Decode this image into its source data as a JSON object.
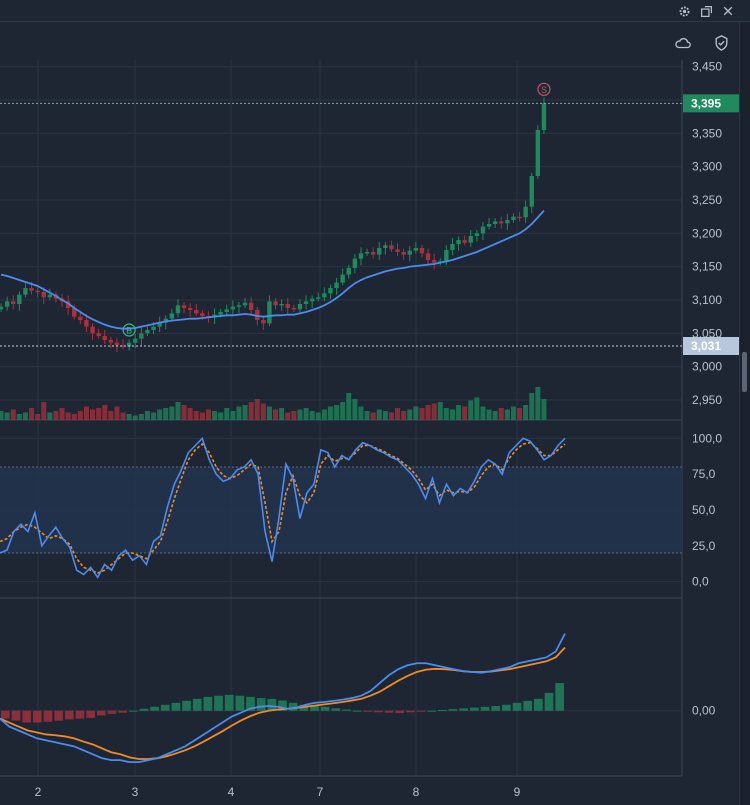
{
  "colors": {
    "background": "#1e2633",
    "grid": "#2a3442",
    "up": "#1e8a5e",
    "down": "#a8323e",
    "ma": "#4a8cf0",
    "signal": "#f08c28",
    "price_tag": "#1e8a5e",
    "last_tag": "#b8c8dc",
    "band_fill": "#23344f"
  },
  "icons": {
    "settings": "gear-icon",
    "popout": "popout-icon",
    "close": "close-icon",
    "cloud": "cloud-icon",
    "shield": "shield-check-icon"
  },
  "chart_data": [
    {
      "type": "candlestick",
      "panel": "price",
      "x_labels": [
        "2",
        "3",
        "4",
        "7",
        "8",
        "9"
      ],
      "y_ticks": [
        "2,950",
        "3,000",
        "3,050",
        "3,100",
        "3,150",
        "3,200",
        "3,250",
        "3,300",
        "3,350",
        "3,400",
        "3,450"
      ],
      "ylim": [
        2920,
        3460
      ],
      "current_price": "3,395",
      "current_price_value": 3395,
      "marker_price": "3,031",
      "marker_price_value": 3031,
      "markers": [
        {
          "label": "B",
          "bar": 21,
          "price": 3055
        },
        {
          "label": "S",
          "bar": 89,
          "price": 3416
        }
      ],
      "close": [
        3090,
        3098,
        3094,
        3108,
        3118,
        3114,
        3112,
        3104,
        3108,
        3102,
        3098,
        3088,
        3075,
        3070,
        3060,
        3050,
        3046,
        3040,
        3036,
        3032,
        3030,
        3036,
        3042,
        3050,
        3055,
        3060,
        3066,
        3072,
        3080,
        3092,
        3088,
        3085,
        3080,
        3076,
        3074,
        3078,
        3082,
        3086,
        3090,
        3092,
        3096,
        3085,
        3070,
        3065,
        3098,
        3092,
        3094,
        3088,
        3086,
        3094,
        3098,
        3102,
        3104,
        3110,
        3118,
        3126,
        3138,
        3148,
        3162,
        3170,
        3172,
        3168,
        3178,
        3182,
        3176,
        3172,
        3168,
        3174,
        3178,
        3170,
        3160,
        3156,
        3158,
        3175,
        3184,
        3190,
        3186,
        3196,
        3200,
        3210,
        3214,
        3218,
        3215,
        3220,
        3225,
        3224,
        3240,
        3286,
        3355,
        3395
      ],
      "ma": [
        3138,
        3136,
        3133,
        3130,
        3127,
        3124,
        3121,
        3116,
        3111,
        3106,
        3100,
        3095,
        3088,
        3082,
        3076,
        3071,
        3067,
        3063,
        3060,
        3058,
        3057,
        3057,
        3058,
        3060,
        3062,
        3064,
        3066,
        3068,
        3069,
        3070,
        3071,
        3072,
        3072,
        3073,
        3074,
        3075,
        3076,
        3077,
        3077,
        3078,
        3079,
        3078,
        3076,
        3075,
        3076,
        3077,
        3077,
        3078,
        3078,
        3080,
        3082,
        3085,
        3088,
        3092,
        3097,
        3103,
        3110,
        3118,
        3125,
        3130,
        3134,
        3137,
        3140,
        3143,
        3145,
        3147,
        3148,
        3150,
        3151,
        3152,
        3153,
        3154,
        3156,
        3158,
        3160,
        3163,
        3166,
        3169,
        3172,
        3176,
        3180,
        3184,
        3188,
        3192,
        3196,
        3200,
        3206,
        3214,
        3224,
        3234
      ],
      "volume": [
        6,
        5,
        7,
        4,
        5,
        8,
        4,
        12,
        5,
        6,
        8,
        5,
        4,
        6,
        9,
        7,
        8,
        10,
        6,
        9,
        5,
        4,
        3,
        4,
        6,
        5,
        7,
        8,
        9,
        12,
        10,
        8,
        6,
        5,
        7,
        6,
        5,
        8,
        6,
        9,
        10,
        12,
        14,
        11,
        9,
        7,
        8,
        5,
        6,
        7,
        8,
        6,
        5,
        7,
        9,
        10,
        12,
        18,
        14,
        9,
        6,
        5,
        7,
        6,
        5,
        8,
        6,
        7,
        9,
        8,
        10,
        11,
        12,
        8,
        7,
        10,
        9,
        13,
        15,
        9,
        7,
        6,
        8,
        7,
        9,
        8,
        10,
        18,
        22,
        14
      ]
    },
    {
      "type": "line",
      "panel": "oscillator",
      "y_ticks": [
        "0,0",
        "25,0",
        "50,0",
        "75,0",
        "100,0"
      ],
      "ylim": [
        -10,
        110
      ],
      "band": [
        20,
        80
      ],
      "series": [
        {
          "role": "main",
          "values": [
            20,
            22,
            35,
            40,
            35,
            48,
            25,
            32,
            38,
            30,
            24,
            8,
            5,
            10,
            3,
            12,
            8,
            18,
            22,
            15,
            18,
            12,
            28,
            32,
            52,
            68,
            78,
            90,
            95,
            100,
            85,
            75,
            70,
            72,
            78,
            80,
            85,
            75,
            35,
            14,
            45,
            82,
            72,
            44,
            62,
            68,
            92,
            90,
            80,
            88,
            85,
            92,
            97,
            95,
            92,
            90,
            87,
            85,
            80,
            75,
            68,
            58,
            72,
            55,
            68,
            60,
            65,
            62,
            70,
            80,
            85,
            82,
            75,
            90,
            95,
            100,
            98,
            92,
            85,
            88,
            95,
            100
          ]
        },
        {
          "role": "signal",
          "values": [
            28,
            30,
            35,
            38,
            40,
            38,
            34,
            30,
            32,
            30,
            26,
            16,
            10,
            8,
            6,
            8,
            12,
            16,
            20,
            20,
            18,
            16,
            22,
            28,
            42,
            58,
            72,
            85,
            92,
            96,
            90,
            80,
            74,
            72,
            74,
            78,
            82,
            80,
            55,
            28,
            35,
            62,
            74,
            60,
            55,
            62,
            82,
            88,
            84,
            86,
            86,
            90,
            95,
            95,
            93,
            91,
            88,
            86,
            82,
            78,
            72,
            64,
            68,
            60,
            64,
            62,
            63,
            62,
            66,
            74,
            80,
            82,
            78,
            86,
            92,
            96,
            97,
            93,
            88,
            88,
            92,
            96
          ]
        }
      ]
    },
    {
      "type": "bar+line",
      "panel": "macd",
      "y_ticks": [
        "0,00"
      ],
      "ylim": [
        -1.6,
        2.8
      ],
      "series": [
        {
          "role": "macd",
          "values": [
            -0.2,
            -0.4,
            -0.5,
            -0.6,
            -0.7,
            -0.75,
            -0.8,
            -0.85,
            -0.9,
            -1.0,
            -1.1,
            -1.2,
            -1.25,
            -1.25,
            -1.3,
            -1.3,
            -1.25,
            -1.2,
            -1.1,
            -1.0,
            -0.9,
            -0.75,
            -0.6,
            -0.45,
            -0.3,
            -0.15,
            -0.05,
            0.05,
            0.1,
            0.12,
            0.1,
            0.05,
            0.08,
            0.15,
            0.2,
            0.22,
            0.25,
            0.28,
            0.32,
            0.38,
            0.5,
            0.7,
            0.9,
            1.05,
            1.15,
            1.2,
            1.2,
            1.15,
            1.1,
            1.05,
            1.0,
            0.98,
            0.96,
            1.0,
            1.05,
            1.1,
            1.2,
            1.25,
            1.3,
            1.35,
            1.5,
            1.95
          ]
        },
        {
          "role": "signal",
          "values": [
            -0.2,
            -0.3,
            -0.4,
            -0.5,
            -0.55,
            -0.6,
            -0.62,
            -0.65,
            -0.7,
            -0.78,
            -0.85,
            -0.95,
            -1.05,
            -1.1,
            -1.18,
            -1.22,
            -1.22,
            -1.2,
            -1.15,
            -1.08,
            -1.0,
            -0.9,
            -0.78,
            -0.65,
            -0.52,
            -0.38,
            -0.25,
            -0.14,
            -0.05,
            0.0,
            0.03,
            0.05,
            0.07,
            0.1,
            0.13,
            0.16,
            0.19,
            0.22,
            0.26,
            0.3,
            0.38,
            0.48,
            0.62,
            0.76,
            0.88,
            0.98,
            1.04,
            1.06,
            1.05,
            1.03,
            1.0,
            0.98,
            0.98,
            0.99,
            1.02,
            1.05,
            1.1,
            1.15,
            1.2,
            1.25,
            1.35,
            1.6
          ]
        },
        {
          "role": "histogram",
          "values": [
            -0.2,
            -0.25,
            -0.3,
            -0.3,
            -0.28,
            -0.25,
            -0.22,
            -0.2,
            -0.18,
            -0.12,
            -0.08,
            -0.05,
            0.0,
            0.05,
            0.1,
            0.15,
            0.2,
            0.25,
            0.3,
            0.35,
            0.38,
            0.4,
            0.38,
            0.35,
            0.32,
            0.3,
            0.26,
            0.2,
            0.15,
            0.12,
            0.1,
            0.06,
            0.03,
            0.0,
            -0.02,
            -0.04,
            -0.05,
            -0.06,
            -0.04,
            -0.02,
            0.0,
            0.02,
            0.04,
            0.06,
            0.08,
            0.1,
            0.12,
            0.15,
            0.2,
            0.25,
            0.3,
            0.45,
            0.7
          ]
        }
      ]
    }
  ]
}
